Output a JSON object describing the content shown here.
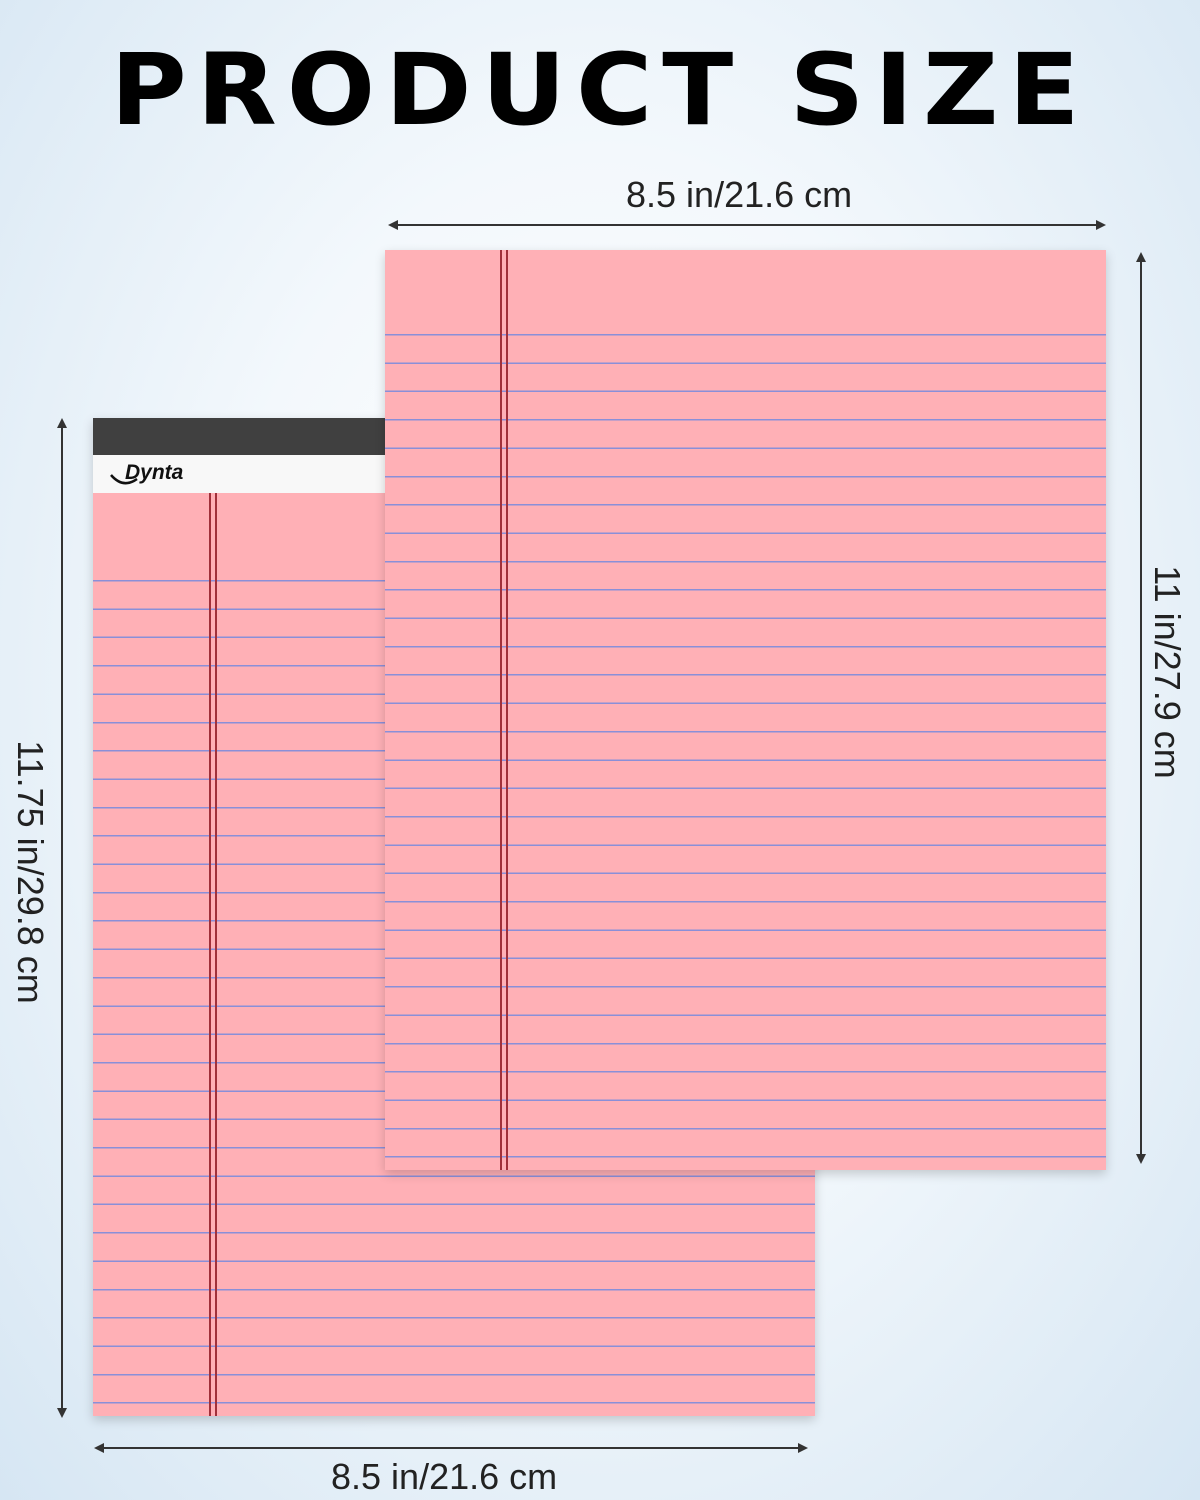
{
  "title": "PRODUCT SIZE",
  "front_pad": {
    "width_label": "8.5 in/21.6 cm",
    "height_label": "11 in/27.9 cm"
  },
  "back_pad": {
    "width_label": "8.5 in/21.6 cm",
    "height_label": "11.75 in/29.8 cm",
    "brand": "Dynta"
  },
  "colors": {
    "paper": "#ffb0b6",
    "rule_lines": "#8a8fd8",
    "margin_lines": "#a0303a",
    "header_band": "#404040"
  }
}
